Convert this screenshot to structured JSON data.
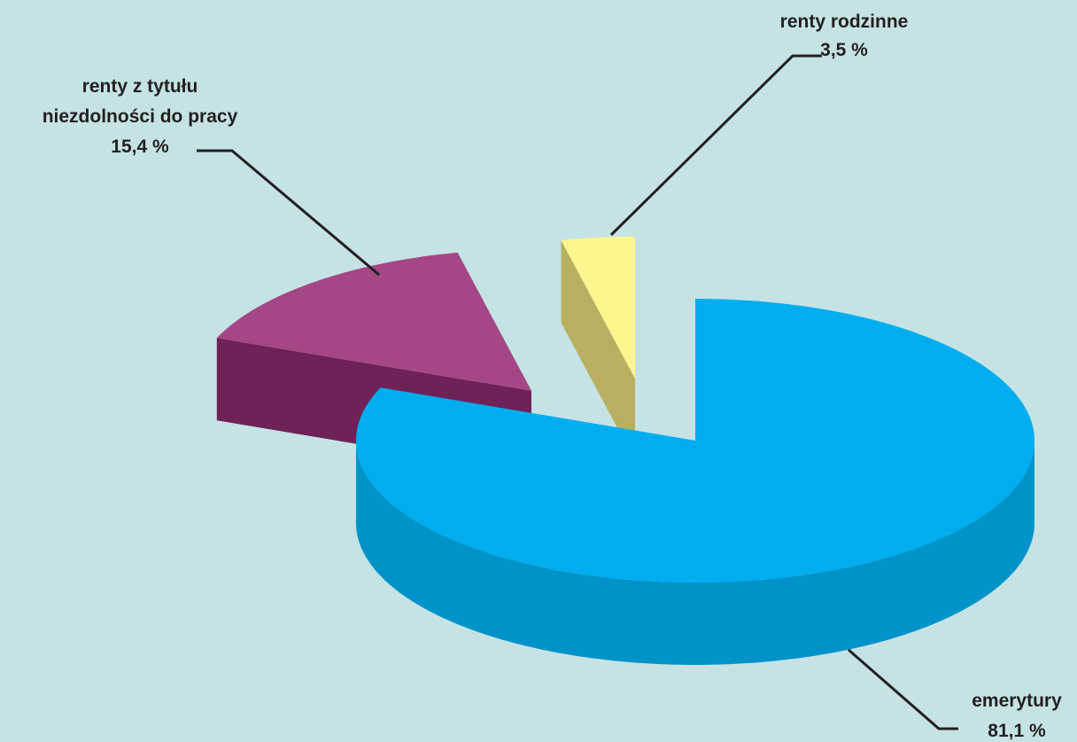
{
  "chart_data": {
    "type": "pie",
    "title": "",
    "slices": [
      {
        "label_lines": [
          "emerytury",
          "81,1 %"
        ],
        "value": 81.1,
        "top_color": "#00aeef",
        "side_color": "#0093c9",
        "exploded": false
      },
      {
        "label_lines": [
          "renty z tytułu",
          "niezdolności do pracy",
          "15,4 %"
        ],
        "value": 15.4,
        "top_color": "#a54686",
        "side_color": "#6e2258",
        "exploded": true
      },
      {
        "label_lines": [
          "renty rodzinne",
          "3,5 %"
        ],
        "value": 3.5,
        "top_color": "#fff58f",
        "side_color": "#b8b060",
        "exploded": true
      }
    ],
    "background_color": "#c5e3e4",
    "three_d": true,
    "legend": "none"
  }
}
